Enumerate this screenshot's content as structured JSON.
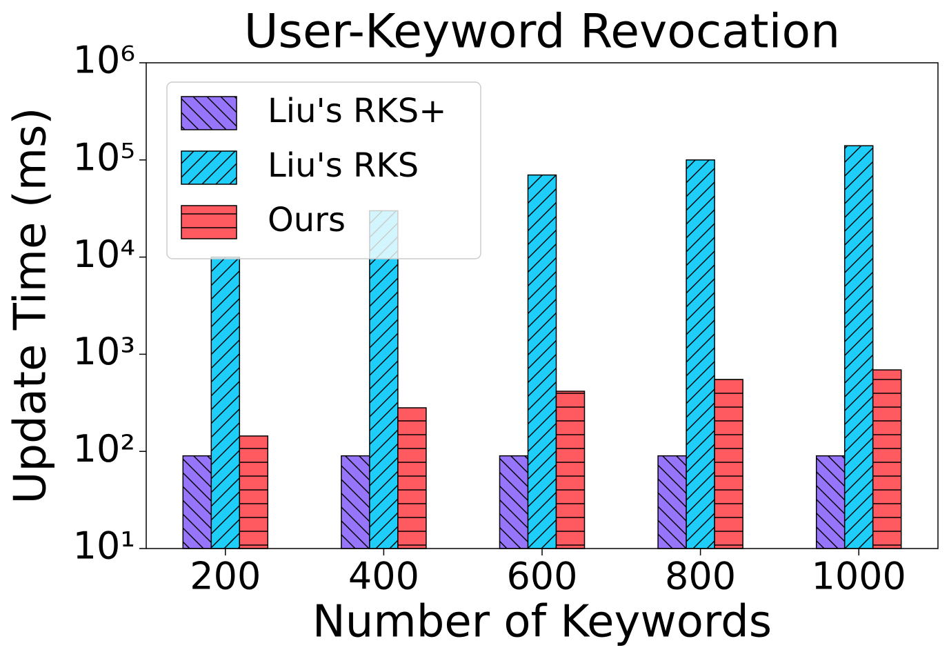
{
  "chart_data": {
    "type": "bar",
    "title": "User-Keyword Revocation",
    "x_label": "Number of Keywords",
    "y_label": "Update Time (ms)",
    "categories": [
      "200",
      "400",
      "600",
      "800",
      "1000"
    ],
    "series": [
      {
        "name": "Liu's RKS+",
        "color": "#9775fa",
        "hatch": "\\",
        "values": [
          90,
          90,
          90,
          90,
          90
        ]
      },
      {
        "name": "Liu's RKS",
        "color": "#1ecdf8",
        "hatch": "/",
        "values": [
          10000,
          30000,
          70000,
          100000,
          140000
        ]
      },
      {
        "name": "Ours",
        "color": "#ff5a60",
        "hatch": "-",
        "values": [
          144,
          281,
          416,
          550,
          690
        ]
      }
    ],
    "log_y": true,
    "ylim": [
      10,
      1000000
    ],
    "yticks": [
      {
        "value": 10,
        "label": "10¹"
      },
      {
        "value": 100,
        "label": "10²"
      },
      {
        "value": 1000,
        "label": "10³"
      },
      {
        "value": 10000,
        "label": "10⁴"
      },
      {
        "value": 100000,
        "label": "10⁵"
      },
      {
        "value": 1000000,
        "label": "10⁶"
      }
    ],
    "legend": "upper left"
  }
}
